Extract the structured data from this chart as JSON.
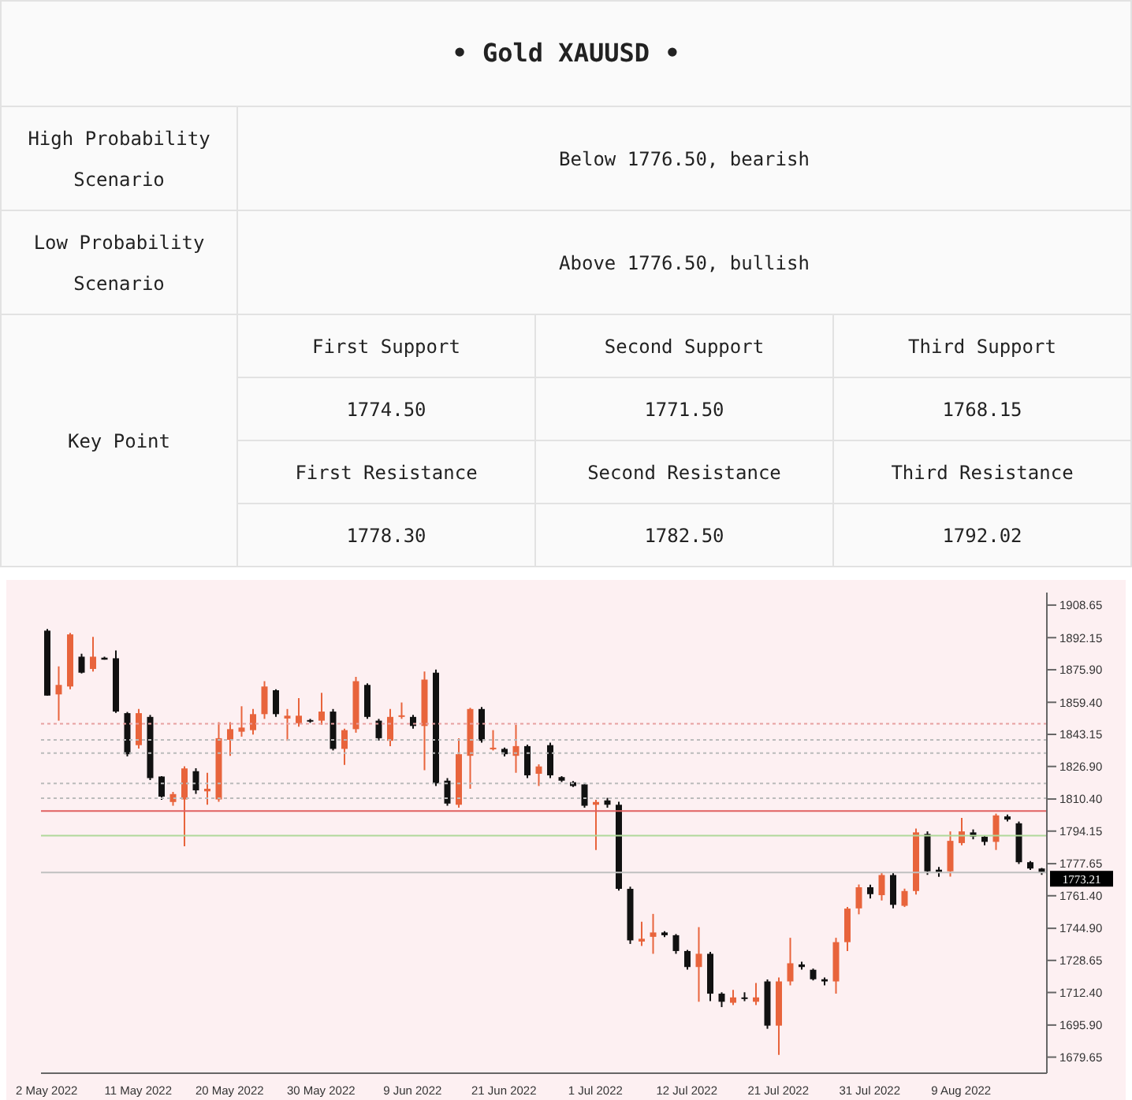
{
  "chart_data": {
    "type": "candlestick",
    "title": "• Gold XAUUSD •",
    "annotations": [
      "High Probability Scenario",
      "Below 1776.50, bearish",
      "Low Probability Scenario",
      "Above 1776.50, bullish",
      "Key Point",
      "First Support",
      "Second Support",
      "Third Support",
      "1774.50",
      "1771.50",
      "1768.15",
      "First Resistance",
      "Second Resistance",
      "Third Resistance",
      "1778.30",
      "1782.50",
      "1792.02"
    ],
    "categories": [
      "2 May 2022",
      null,
      null,
      null,
      null,
      null,
      null,
      null,
      "11 May 2022",
      null,
      null,
      null,
      null,
      null,
      null,
      null,
      "20 May 2022",
      null,
      null,
      null,
      null,
      null,
      null,
      null,
      "30 May 2022",
      null,
      null,
      null,
      null,
      null,
      null,
      null,
      "9 Jun 2022",
      null,
      null,
      null,
      null,
      null,
      null,
      null,
      "21 Jun 2022",
      null,
      null,
      null,
      null,
      null,
      null,
      null,
      "1 Jul 2022",
      null,
      null,
      null,
      null,
      null,
      null,
      null,
      "12 Jul 2022",
      null,
      null,
      null,
      null,
      null,
      null,
      null,
      "21 Jul 2022",
      null,
      null,
      null,
      null,
      null,
      null,
      null,
      "31 Jul 2022",
      null,
      null,
      null,
      null,
      null,
      null,
      null,
      "9 Aug 2022",
      null,
      null,
      null,
      null,
      null,
      null,
      null
    ],
    "ohlc": [
      [
        1895.7,
        1896.5,
        1862.8,
        1862.8
      ],
      [
        1863.4,
        1877.6,
        1850.1,
        1868.2
      ],
      [
        1867.4,
        1894.5,
        1866,
        1893.8
      ],
      [
        1882.5,
        1884,
        1874,
        1874.4
      ],
      [
        1876.3,
        1892.5,
        1875,
        1882.5
      ],
      [
        1882,
        1882.5,
        1881,
        1881
      ],
      [
        1881.7,
        1885.7,
        1854,
        1854.7
      ],
      [
        1853.9,
        1854.5,
        1832,
        1833.1
      ],
      [
        1837.7,
        1856,
        1836,
        1853.9
      ],
      [
        1852,
        1853,
        1820,
        1821
      ],
      [
        1821.8,
        1822,
        1810,
        1811.6
      ],
      [
        1808.9,
        1814,
        1807,
        1812.9
      ],
      [
        1810.2,
        1827,
        1786.5,
        1825.9
      ],
      [
        1824.5,
        1826,
        1813,
        1814.8
      ],
      [
        1814.3,
        1823.7,
        1807.5,
        1815.6
      ],
      [
        1810.2,
        1849.3,
        1809,
        1841.2
      ],
      [
        1840.4,
        1849.3,
        1832.3,
        1845.8
      ],
      [
        1844.5,
        1857.4,
        1842,
        1846.6
      ],
      [
        1845.3,
        1856,
        1843,
        1853.4
      ],
      [
        1853.4,
        1870.1,
        1851,
        1867.4
      ],
      [
        1865.5,
        1866,
        1852,
        1853.4
      ],
      [
        1851.2,
        1856,
        1839.9,
        1852.6
      ],
      [
        1848.8,
        1861.5,
        1847,
        1852.6
      ],
      [
        1850.4,
        1851,
        1849,
        1850.1
      ],
      [
        1850.1,
        1864.2,
        1848,
        1854.7
      ],
      [
        1854.7,
        1856,
        1835,
        1835.8
      ],
      [
        1835.8,
        1846,
        1827.7,
        1845.3
      ],
      [
        1845.8,
        1872.3,
        1844,
        1870.1
      ],
      [
        1868.2,
        1869,
        1851,
        1852
      ],
      [
        1850.1,
        1851,
        1840,
        1841.2
      ],
      [
        1839.9,
        1856,
        1837.2,
        1852
      ],
      [
        1852,
        1859.3,
        1851,
        1852.8
      ],
      [
        1852,
        1853,
        1846,
        1847.4
      ],
      [
        1847.4,
        1875,
        1825,
        1870.9
      ],
      [
        1874.4,
        1876,
        1817,
        1818.3
      ],
      [
        1819.7,
        1821,
        1807,
        1808.1
      ],
      [
        1807.5,
        1841.2,
        1806,
        1833.1
      ],
      [
        1832.3,
        1856.6,
        1815.6,
        1856
      ],
      [
        1856,
        1857,
        1839,
        1839.9
      ],
      [
        1835.9,
        1845.3,
        1835,
        1836.4
      ],
      [
        1835.8,
        1836.5,
        1832,
        1833.1
      ],
      [
        1832.3,
        1848,
        1823.7,
        1837.2
      ],
      [
        1837.2,
        1838,
        1821,
        1822.4
      ],
      [
        1823.2,
        1828,
        1817,
        1826.9
      ],
      [
        1837.7,
        1839,
        1821,
        1822.4
      ],
      [
        1821.5,
        1822,
        1819,
        1819.7
      ],
      [
        1818.9,
        1819.5,
        1816.5,
        1817
      ],
      [
        1817.8,
        1818.5,
        1806,
        1807
      ],
      [
        1807.5,
        1810,
        1784.6,
        1808.9
      ],
      [
        1809.7,
        1811,
        1806,
        1807.5
      ],
      [
        1807.5,
        1809,
        1764,
        1764.9
      ],
      [
        1764.9,
        1766,
        1737,
        1738.8
      ],
      [
        1738.2,
        1748.2,
        1736,
        1739.6
      ],
      [
        1740.6,
        1752.2,
        1732,
        1742.8
      ],
      [
        1742.8,
        1743.5,
        1740.5,
        1741.4
      ],
      [
        1741.4,
        1742,
        1732,
        1733.4
      ],
      [
        1733.4,
        1734,
        1724,
        1725.3
      ],
      [
        1725.3,
        1745.5,
        1707.7,
        1732
      ],
      [
        1732,
        1733,
        1708,
        1711.8
      ],
      [
        1711.8,
        1712.5,
        1705,
        1707.7
      ],
      [
        1707.2,
        1713.7,
        1706,
        1709.9
      ],
      [
        1709.9,
        1712.5,
        1708,
        1709.1
      ],
      [
        1707.7,
        1717.2,
        1706,
        1709.9
      ],
      [
        1718,
        1719,
        1694,
        1695.6
      ],
      [
        1695.6,
        1720,
        1680.8,
        1718
      ],
      [
        1718,
        1740.1,
        1716,
        1727.2
      ],
      [
        1726.6,
        1728,
        1724,
        1725.3
      ],
      [
        1723.9,
        1724.5,
        1718.5,
        1719.1
      ],
      [
        1719.1,
        1720,
        1716,
        1718
      ],
      [
        1718,
        1740.1,
        1711.8,
        1737.9
      ],
      [
        1737.9,
        1755.7,
        1733.4,
        1754.9
      ],
      [
        1755,
        1767.1,
        1752,
        1765.7
      ],
      [
        1765.7,
        1767,
        1760,
        1762.2
      ],
      [
        1761.7,
        1773,
        1759,
        1771.9
      ],
      [
        1771.9,
        1773,
        1755,
        1756.8
      ],
      [
        1756.3,
        1765,
        1755.7,
        1763.8
      ],
      [
        1763.8,
        1795.4,
        1762,
        1793.5
      ],
      [
        1792.7,
        1794,
        1772,
        1773.8
      ],
      [
        1774.6,
        1776,
        1771,
        1773
      ],
      [
        1773.8,
        1794,
        1771.1,
        1789.2
      ],
      [
        1788.1,
        1800.8,
        1787,
        1794
      ],
      [
        1793.5,
        1795,
        1790,
        1791.4
      ],
      [
        1791.3,
        1792,
        1787,
        1788.7
      ],
      [
        1788.7,
        1803,
        1784.6,
        1802.1
      ],
      [
        1801.6,
        1802.5,
        1799,
        1800
      ],
      [
        1798.1,
        1799,
        1777.5,
        1778.4
      ],
      [
        1778.4,
        1779,
        1774.5,
        1775.2
      ],
      [
        1775.2,
        1775.5,
        1772,
        1773.21
      ]
    ],
    "ylim": [
      1671.5,
      1915
    ],
    "yticks": [
      {
        "value": 1908.65,
        "label": "1908.65"
      },
      {
        "value": 1892.15,
        "label": "1892.15"
      },
      {
        "value": 1875.9,
        "label": "1875.90"
      },
      {
        "value": 1859.4,
        "label": "1859.40"
      },
      {
        "value": 1843.15,
        "label": "1843.15"
      },
      {
        "value": 1826.9,
        "label": "1826.90"
      },
      {
        "value": 1810.4,
        "label": "1810.40"
      },
      {
        "value": 1794.15,
        "label": "1794.15"
      },
      {
        "value": 1777.65,
        "label": "1777.65"
      },
      {
        "value": 1761.4,
        "label": "1761.40"
      },
      {
        "value": 1744.9,
        "label": "1744.90"
      },
      {
        "value": 1728.65,
        "label": "1728.65"
      },
      {
        "value": 1712.4,
        "label": "1712.40"
      },
      {
        "value": 1695.9,
        "label": "1695.90"
      },
      {
        "value": 1679.65,
        "label": "1679.65"
      }
    ],
    "ref_lines": [
      {
        "axis": "y",
        "value": 1848.5,
        "color": "#e8a0a0",
        "line_style": "dotted"
      },
      {
        "axis": "y",
        "value": 1840.4,
        "color": "#bbbbbb",
        "line_style": "dotted"
      },
      {
        "axis": "y",
        "value": 1833.7,
        "color": "#bbbbbb",
        "line_style": "dotted"
      },
      {
        "axis": "y",
        "value": 1818.3,
        "color": "#bbbbbb",
        "line_style": "dotted"
      },
      {
        "axis": "y",
        "value": 1810.8,
        "color": "#bbbbbb",
        "line_style": "dotted"
      },
      {
        "axis": "y",
        "value": 1804.3,
        "color": "#e06060",
        "line_style": "solid"
      },
      {
        "axis": "y",
        "value": 1791.9,
        "color": "#b0d89a",
        "line_style": "solid"
      },
      {
        "axis": "y",
        "value": 1773.21,
        "label": "1773.21",
        "color": "#c0c0c0",
        "line_style": "solid"
      }
    ]
  }
}
